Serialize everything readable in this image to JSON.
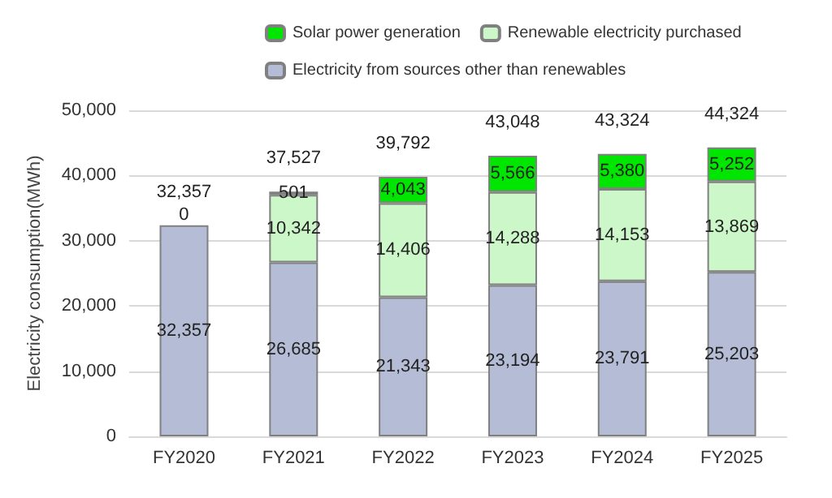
{
  "chart_data": {
    "type": "bar",
    "stacked": true,
    "ylabel": "Electricity consumption(MWh)",
    "categories": [
      "FY2020",
      "FY2021",
      "FY2022",
      "FY2023",
      "FY2024",
      "FY2025"
    ],
    "series": [
      {
        "name": "Electricity from sources other than renewables",
        "color": "#b4bcd6",
        "values": [
          32357,
          26685,
          21343,
          23194,
          23791,
          25203
        ],
        "value_labels": [
          "32,357",
          "26,685",
          "21,343",
          "23,194",
          "23,791",
          "25,203"
        ]
      },
      {
        "name": "Renewable electricity purchased",
        "color": "#ccf7c8",
        "values": [
          0,
          10342,
          14406,
          14288,
          14153,
          13869
        ],
        "value_labels": [
          null,
          "10,342",
          "14,406",
          "14,288",
          "14,153",
          "13,869"
        ]
      },
      {
        "name": "Solar power generation",
        "color": "#00e600",
        "values": [
          0,
          501,
          4043,
          5566,
          5380,
          5252
        ],
        "value_labels": [
          "0",
          "501",
          "4,043",
          "5,566",
          "5,380",
          "5,252"
        ]
      }
    ],
    "totals": [
      "32,357",
      "37,527",
      "39,792",
      "43,048",
      "43,324",
      "44,324"
    ],
    "ylim": [
      0,
      50000
    ],
    "yticks": [
      0,
      {
        "value": 10000,
        "label": "10,000"
      },
      {
        "value": 20000,
        "label": "20,000"
      },
      {
        "value": 30000,
        "label": "30,000"
      },
      {
        "value": 40000,
        "label": "40,000"
      },
      {
        "value": 50000,
        "label": "50,000"
      }
    ],
    "grid": "y",
    "legend": "top"
  }
}
